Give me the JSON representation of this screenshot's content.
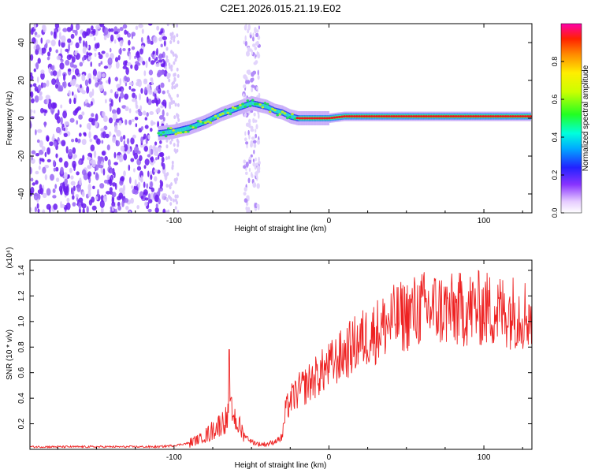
{
  "title": "C2E1.2026.015.21.19.E02",
  "chart_data": [
    {
      "type": "heatmap",
      "name": "spectrogram",
      "xlabel": "Height of straight line (km)",
      "ylabel": "Frequency (Hz)",
      "xlim": [
        -193,
        131
      ],
      "ylim": [
        -50,
        50
      ],
      "xticks": [
        -100,
        0,
        100
      ],
      "yticks": [
        -40,
        -20,
        0,
        20,
        40
      ],
      "colorbar": {
        "label": "Normalized spectral amplitude",
        "range": [
          0,
          1
        ],
        "ticks": [
          "0.0",
          "0.2",
          "0.4",
          "0.6",
          "0.8"
        ]
      },
      "ridge": {
        "x": [
          -110,
          -100,
          -90,
          -80,
          -70,
          -60,
          -50,
          -45,
          -40,
          -35,
          -30,
          -25,
          -20,
          -10,
          0,
          10,
          130
        ],
        "y": [
          -8,
          -7,
          -5,
          -2,
          2,
          5,
          8,
          7,
          6,
          4,
          3,
          1,
          0,
          0,
          0,
          1,
          1
        ]
      },
      "noise_region_x": [
        -193,
        -105
      ],
      "noise_column_x": [
        -55,
        -45
      ]
    },
    {
      "type": "line",
      "name": "snr",
      "xlabel": "Height of straight line (km)",
      "ylabel": "SNR (10 * v/v)",
      "scale_label": "(x10⁴)",
      "xlim": [
        -193,
        131
      ],
      "ylim": [
        0,
        1.48
      ],
      "xticks": [
        -100,
        0,
        100
      ],
      "yticks": [
        0.2,
        0.4,
        0.6,
        0.8,
        1.0,
        1.2,
        1.4
      ],
      "series": [
        {
          "name": "SNR",
          "color": "#ee2222",
          "x": [
            -193,
            -110,
            -100,
            -90,
            -80,
            -75,
            -70,
            -65,
            -62,
            -60,
            -55,
            -50,
            -45,
            -40,
            -35,
            -30,
            -28,
            -25,
            -20,
            -10,
            0,
            10,
            20,
            30,
            40,
            50,
            60,
            70,
            80,
            90,
            100,
            110,
            120,
            131
          ],
          "y": [
            0.02,
            0.02,
            0.03,
            0.05,
            0.1,
            0.15,
            0.2,
            0.25,
            0.3,
            0.22,
            0.12,
            0.06,
            0.04,
            0.04,
            0.06,
            0.1,
            0.3,
            0.38,
            0.45,
            0.55,
            0.65,
            0.75,
            0.85,
            0.92,
            1.0,
            1.05,
            1.1,
            1.1,
            1.08,
            1.1,
            1.1,
            1.08,
            1.08,
            1.05
          ]
        }
      ]
    }
  ],
  "colors": {
    "line": "#ee2222",
    "noise": "#7722ee",
    "axis": "#000000"
  }
}
